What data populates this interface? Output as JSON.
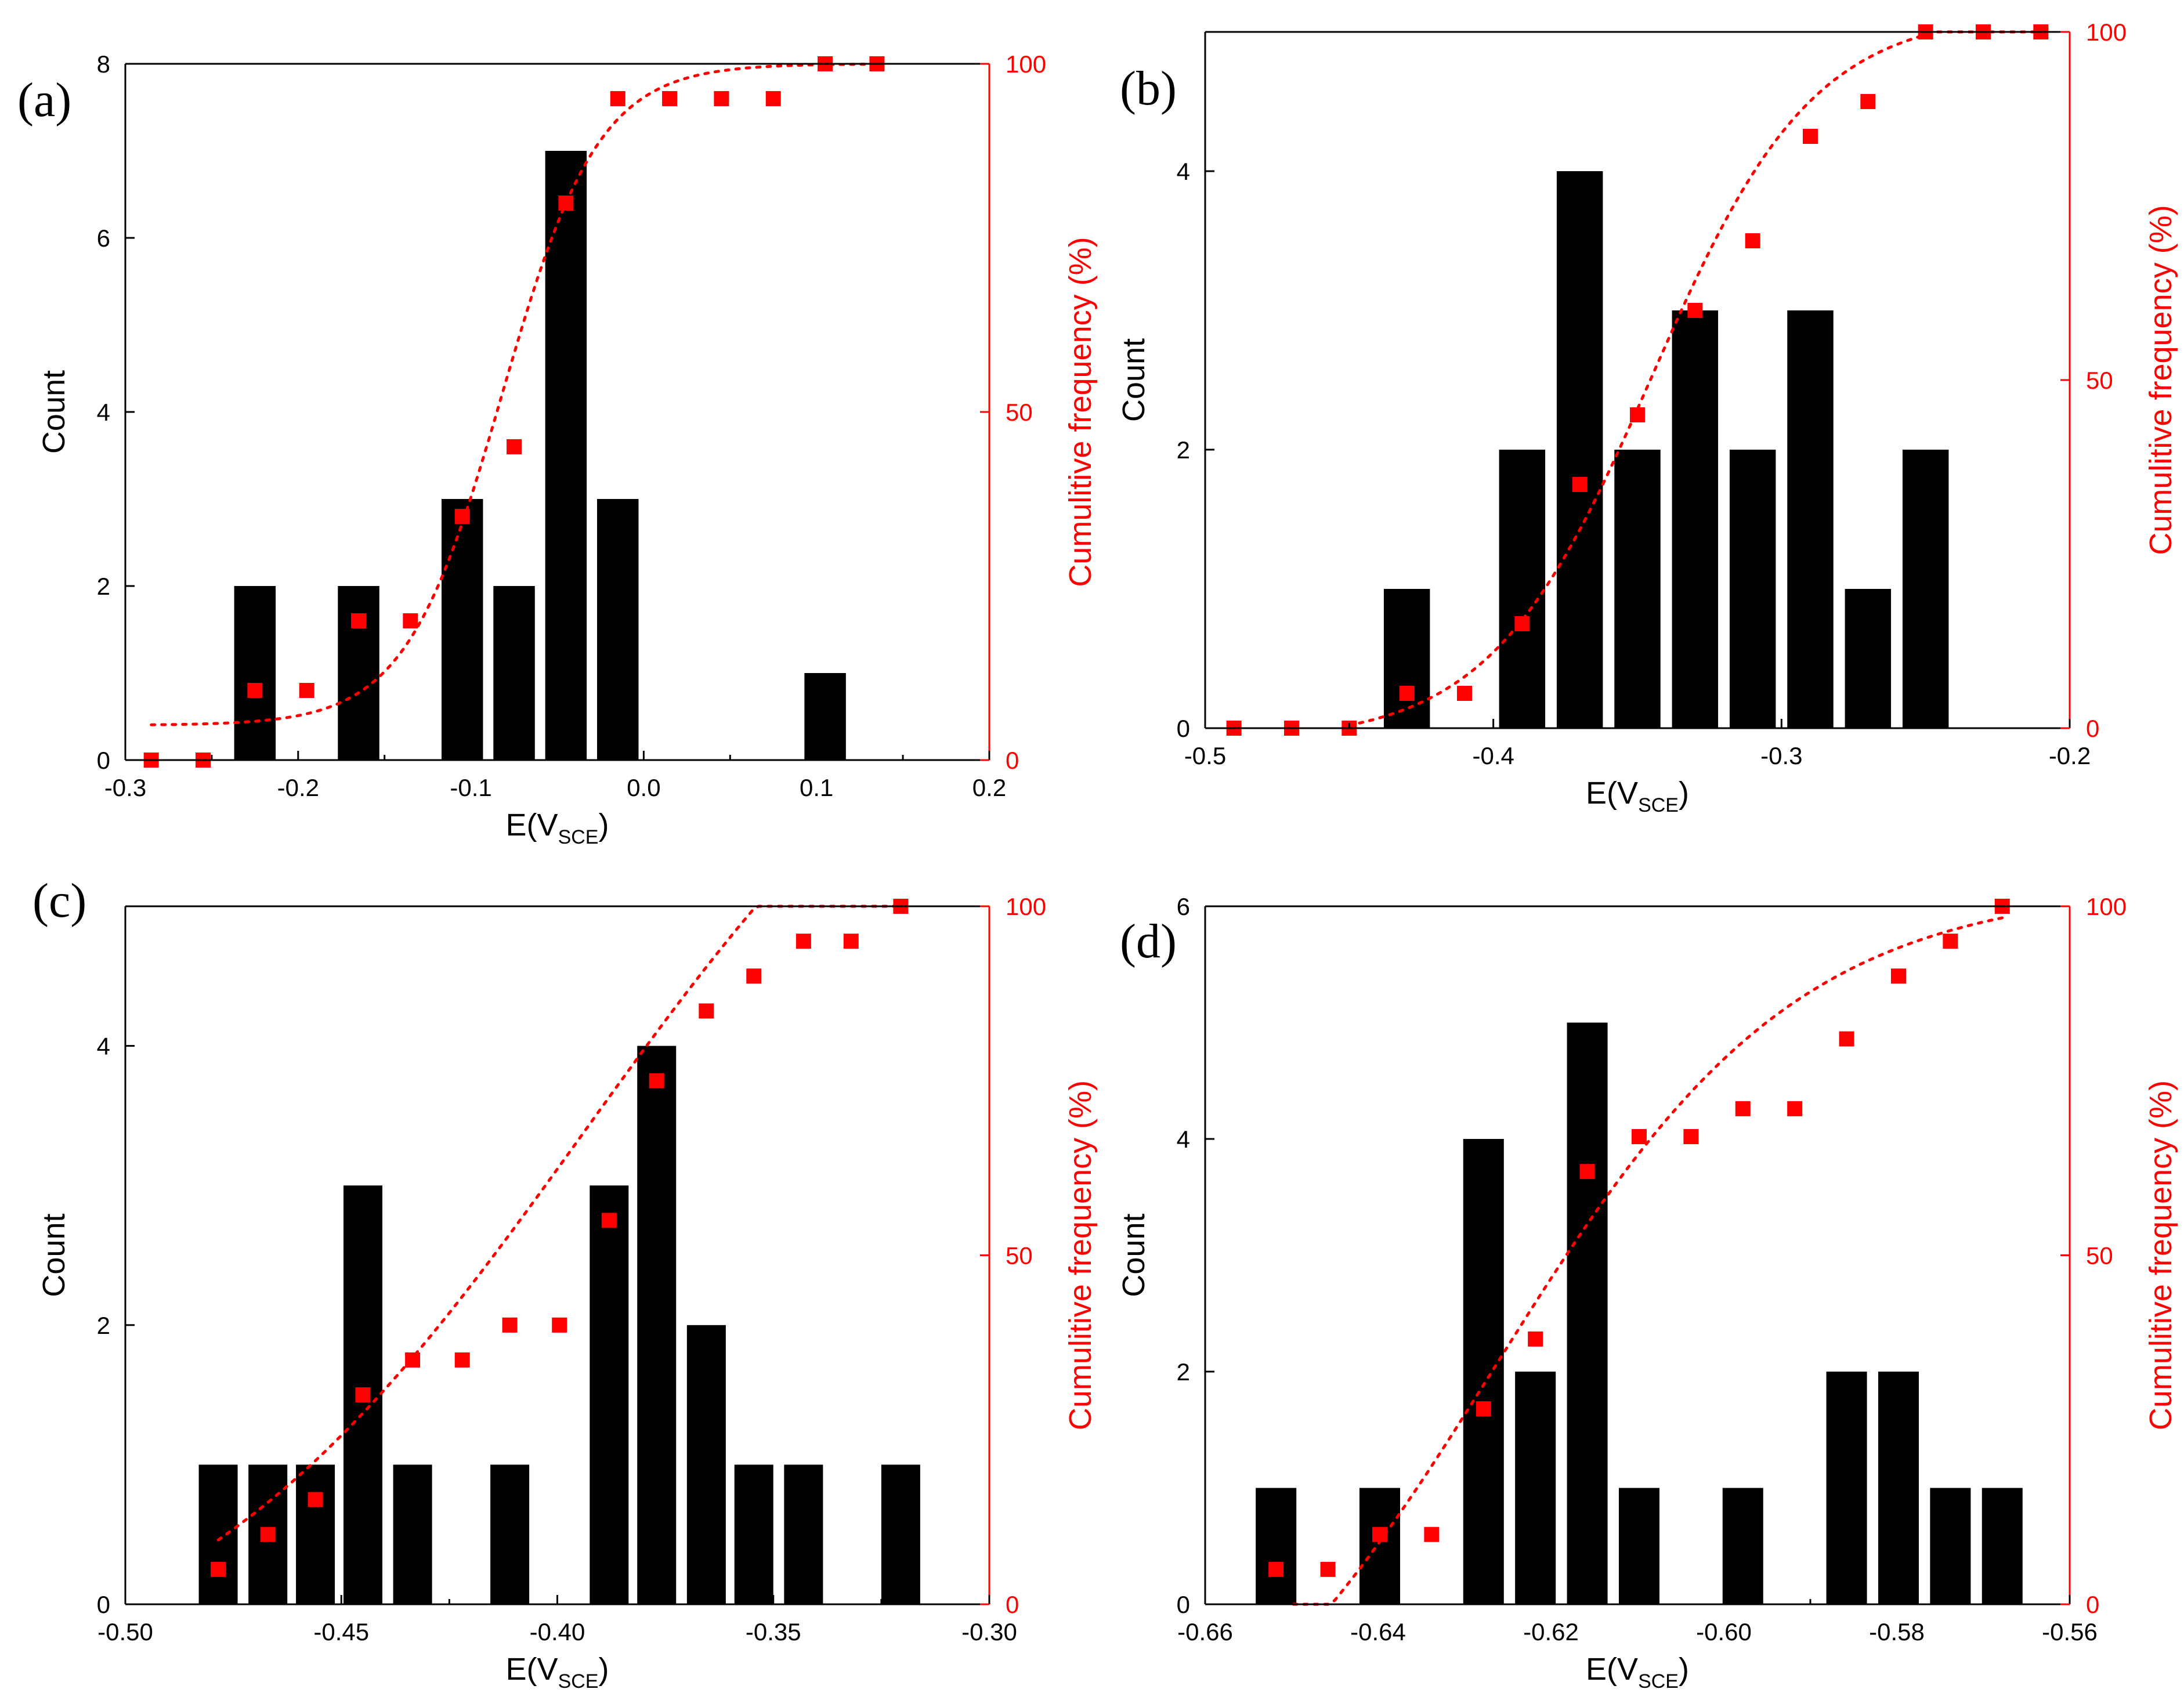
{
  "figure": {
    "description": "Histograms of potential E(V_SCE) counts with cumulative frequency (%) overlay"
  },
  "chart_data": [
    {
      "type": "bar",
      "panel_label": "(a)",
      "xlabel_main": "E(V",
      "xlabel_sub": "SCE",
      "xlabel_close": ")",
      "ylabel": "Count",
      "y2label": "Cumulitive frequency (%)",
      "xlim": [
        -0.3,
        0.2
      ],
      "ylim": [
        0,
        8
      ],
      "y2lim": [
        0,
        100
      ],
      "x_ticks": [
        -0.3,
        -0.2,
        -0.1,
        0.0,
        0.1,
        0.2
      ],
      "x_tick_labels": [
        "-0.3",
        "-0.2",
        "-0.1",
        "0.0",
        "0.1",
        "0.2"
      ],
      "y_ticks": [
        0,
        2,
        4,
        6,
        8
      ],
      "y_tick_labels": [
        "0",
        "2",
        "4",
        "6",
        "8"
      ],
      "y2_ticks": [
        0,
        50,
        100
      ],
      "y2_tick_labels": [
        "0",
        "50",
        "100"
      ],
      "bar_width": 0.024,
      "bars": [
        {
          "x": -0.225,
          "value": 2
        },
        {
          "x": -0.165,
          "value": 2
        },
        {
          "x": -0.105,
          "value": 3
        },
        {
          "x": -0.075,
          "value": 2
        },
        {
          "x": -0.045,
          "value": 7
        },
        {
          "x": -0.015,
          "value": 3
        },
        {
          "x": 0.105,
          "value": 1
        }
      ],
      "cumulative_points": [
        {
          "x": -0.285,
          "y": 0
        },
        {
          "x": -0.255,
          "y": 0
        },
        {
          "x": -0.225,
          "y": 10
        },
        {
          "x": -0.195,
          "y": 10
        },
        {
          "x": -0.165,
          "y": 20
        },
        {
          "x": -0.135,
          "y": 20
        },
        {
          "x": -0.105,
          "y": 35
        },
        {
          "x": -0.075,
          "y": 45
        },
        {
          "x": -0.045,
          "y": 80
        },
        {
          "x": -0.015,
          "y": 95
        },
        {
          "x": 0.015,
          "y": 95
        },
        {
          "x": 0.045,
          "y": 95
        },
        {
          "x": 0.075,
          "y": 95
        },
        {
          "x": 0.105,
          "y": 100
        },
        {
          "x": 0.135,
          "y": 100
        }
      ],
      "fit_curve": {
        "type": "sigmoid",
        "A1": 5,
        "A2": 100,
        "x0": -0.082,
        "dx": 0.028,
        "x_start": -0.285,
        "x_end": 0.135
      }
    },
    {
      "type": "bar",
      "panel_label": "(b)",
      "xlabel_main": "E(V",
      "xlabel_sub": "SCE",
      "xlabel_close": ")",
      "ylabel": "Count",
      "y2label": "Cumulitive frequency (%)",
      "xlim": [
        -0.5,
        -0.2
      ],
      "ylim": [
        0,
        5
      ],
      "y2lim": [
        0,
        100
      ],
      "x_ticks": [
        -0.5,
        -0.4,
        -0.3,
        -0.2
      ],
      "x_tick_labels": [
        "-0.5",
        "-0.4",
        "-0.3",
        "-0.2"
      ],
      "y_ticks": [
        0,
        2,
        4
      ],
      "y_tick_labels": [
        "0",
        "2",
        "4"
      ],
      "y2_ticks": [
        0,
        50,
        100
      ],
      "y2_tick_labels": [
        "0",
        "50",
        "100"
      ],
      "bar_width": 0.016,
      "bars": [
        {
          "x": -0.43,
          "value": 1
        },
        {
          "x": -0.39,
          "value": 2
        },
        {
          "x": -0.37,
          "value": 4
        },
        {
          "x": -0.35,
          "value": 2
        },
        {
          "x": -0.33,
          "value": 3
        },
        {
          "x": -0.31,
          "value": 2
        },
        {
          "x": -0.29,
          "value": 3
        },
        {
          "x": -0.27,
          "value": 1
        },
        {
          "x": -0.25,
          "value": 2
        }
      ],
      "cumulative_points": [
        {
          "x": -0.49,
          "y": 0
        },
        {
          "x": -0.47,
          "y": 0
        },
        {
          "x": -0.45,
          "y": 0
        },
        {
          "x": -0.43,
          "y": 5
        },
        {
          "x": -0.41,
          "y": 5
        },
        {
          "x": -0.39,
          "y": 15
        },
        {
          "x": -0.37,
          "y": 35
        },
        {
          "x": -0.35,
          "y": 45
        },
        {
          "x": -0.33,
          "y": 60
        },
        {
          "x": -0.31,
          "y": 70
        },
        {
          "x": -0.29,
          "y": 85
        },
        {
          "x": -0.27,
          "y": 90
        },
        {
          "x": -0.25,
          "y": 100
        },
        {
          "x": -0.23,
          "y": 100
        },
        {
          "x": -0.21,
          "y": 100
        }
      ],
      "fit_curve": {
        "type": "sigmoid",
        "A1": -2,
        "A2": 103,
        "x0": -0.345,
        "dx": 0.028,
        "x_start": -0.45,
        "x_end": -0.21
      }
    },
    {
      "type": "bar",
      "panel_label": "(c)",
      "xlabel_main": "E(V",
      "xlabel_sub": "SCE",
      "xlabel_close": ")",
      "ylabel": "Count",
      "y2label": "Cumulitive frequency (%)",
      "xlim": [
        -0.5,
        -0.3
      ],
      "ylim": [
        0,
        5
      ],
      "y2lim": [
        0,
        100
      ],
      "x_ticks": [
        -0.5,
        -0.45,
        -0.4,
        -0.35,
        -0.3
      ],
      "x_tick_labels": [
        "-0.50",
        "-0.45",
        "-0.40",
        "-0.35",
        "-0.30"
      ],
      "y_ticks": [
        0,
        2,
        4
      ],
      "y_tick_labels": [
        "0",
        "2",
        "4"
      ],
      "y2_ticks": [
        0,
        50,
        100
      ],
      "y2_tick_labels": [
        "0",
        "50",
        "100"
      ],
      "bar_width": 0.009,
      "bars": [
        {
          "x": -0.4785,
          "value": 1
        },
        {
          "x": -0.467,
          "value": 1
        },
        {
          "x": -0.456,
          "value": 1
        },
        {
          "x": -0.445,
          "value": 3
        },
        {
          "x": -0.4335,
          "value": 1
        },
        {
          "x": -0.411,
          "value": 1
        },
        {
          "x": -0.388,
          "value": 3
        },
        {
          "x": -0.377,
          "value": 4
        },
        {
          "x": -0.3655,
          "value": 2
        },
        {
          "x": -0.3545,
          "value": 1
        },
        {
          "x": -0.343,
          "value": 1
        },
        {
          "x": -0.3205,
          "value": 1
        }
      ],
      "cumulative_points": [
        {
          "x": -0.4785,
          "y": 5
        },
        {
          "x": -0.467,
          "y": 10
        },
        {
          "x": -0.456,
          "y": 15
        },
        {
          "x": -0.445,
          "y": 30
        },
        {
          "x": -0.4335,
          "y": 35
        },
        {
          "x": -0.422,
          "y": 35
        },
        {
          "x": -0.411,
          "y": 40
        },
        {
          "x": -0.3995,
          "y": 40
        },
        {
          "x": -0.388,
          "y": 55
        },
        {
          "x": -0.377,
          "y": 75
        },
        {
          "x": -0.3655,
          "y": 85
        },
        {
          "x": -0.3545,
          "y": 90
        },
        {
          "x": -0.343,
          "y": 95
        },
        {
          "x": -0.332,
          "y": 95
        },
        {
          "x": -0.3205,
          "y": 100
        }
      ],
      "fit_curve": {
        "type": "sigmoid",
        "A1": -15,
        "A2": 150,
        "x0": -0.394,
        "dx": 0.048,
        "x_start": -0.4785,
        "x_end": -0.3205
      }
    },
    {
      "type": "bar",
      "panel_label": "(d)",
      "xlabel_main": "E(V",
      "xlabel_sub": "SCE",
      "xlabel_close": ")",
      "ylabel": "Count",
      "y2label": "Cumulitive frequency (%)",
      "xlim": [
        -0.66,
        -0.56
      ],
      "ylim": [
        0,
        6
      ],
      "y2lim": [
        0,
        100
      ],
      "x_ticks": [
        -0.66,
        -0.64,
        -0.62,
        -0.6,
        -0.58,
        -0.56
      ],
      "x_tick_labels": [
        "-0.66",
        "-0.64",
        "-0.62",
        "-0.60",
        "-0.58",
        "-0.56"
      ],
      "y_ticks": [
        0,
        2,
        4,
        6
      ],
      "y_tick_labels": [
        "0",
        "2",
        "4",
        "6"
      ],
      "y2_ticks": [
        0,
        50,
        100
      ],
      "y2_tick_labels": [
        "0",
        "50",
        "100"
      ],
      "bar_width": 0.0047,
      "bars": [
        {
          "x": -0.6518,
          "value": 1
        },
        {
          "x": -0.6398,
          "value": 1
        },
        {
          "x": -0.6278,
          "value": 4
        },
        {
          "x": -0.6218,
          "value": 2
        },
        {
          "x": -0.6158,
          "value": 5
        },
        {
          "x": -0.6098,
          "value": 1
        },
        {
          "x": -0.5978,
          "value": 1
        },
        {
          "x": -0.5858,
          "value": 2
        },
        {
          "x": -0.5798,
          "value": 2
        },
        {
          "x": -0.5738,
          "value": 1
        },
        {
          "x": -0.5678,
          "value": 1
        }
      ],
      "cumulative_points": [
        {
          "x": -0.6518,
          "y": 5
        },
        {
          "x": -0.6458,
          "y": 5
        },
        {
          "x": -0.6398,
          "y": 10
        },
        {
          "x": -0.6338,
          "y": 10
        },
        {
          "x": -0.6278,
          "y": 28
        },
        {
          "x": -0.6218,
          "y": 38
        },
        {
          "x": -0.6158,
          "y": 62
        },
        {
          "x": -0.6098,
          "y": 67
        },
        {
          "x": -0.6038,
          "y": 67
        },
        {
          "x": -0.5978,
          "y": 71
        },
        {
          "x": -0.5918,
          "y": 71
        },
        {
          "x": -0.5858,
          "y": 81
        },
        {
          "x": -0.5798,
          "y": 90
        },
        {
          "x": -0.5738,
          "y": 95
        },
        {
          "x": -0.5678,
          "y": 100
        }
      ],
      "fit_curve": {
        "type": "sigmoid",
        "A1": -35,
        "A2": 103,
        "x0": -0.6265,
        "dx": 0.0175,
        "x_start": -0.6498,
        "x_end": -0.5678
      }
    }
  ]
}
